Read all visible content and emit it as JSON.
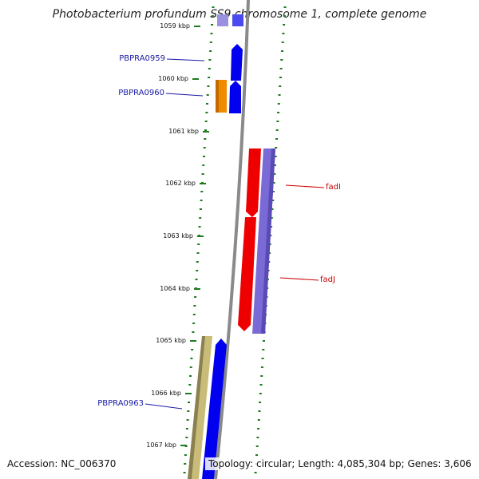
{
  "title": "Photobacterium profundum SS9 chromosome 1, complete genome",
  "footer": {
    "accession": "Accession: NC_006370",
    "summary": "Topology: circular; Length: 4,085,304 bp; Genes: 3,606"
  },
  "scale_ticks": [
    "1059 kbp",
    "1060 kbp",
    "1061 kbp",
    "1062 kbp",
    "1063 kbp",
    "1064 kbp",
    "1065 kbp",
    "1066 kbp",
    "1067 kbp"
  ],
  "gene_labels": [
    {
      "name": "PBPRA0959",
      "color": "#1a1aa8"
    },
    {
      "name": "PBPRA0960",
      "color": "#1a1aa8"
    },
    {
      "name": "fadI",
      "color": "#cc0000"
    },
    {
      "name": "fadJ",
      "color": "#cc0000"
    },
    {
      "name": "PBPRA0963",
      "color": "#1a1aa8"
    }
  ],
  "colors": {
    "backbone": "#8a8a8a",
    "tick_marks": "#1f7a1f",
    "cds_forward": "#0000ee",
    "cds_reverse": "#7a6ad6",
    "fad_genes": "#ee0000",
    "orange_gene": "#f08a00",
    "tan_gene": "#c8bc78"
  }
}
